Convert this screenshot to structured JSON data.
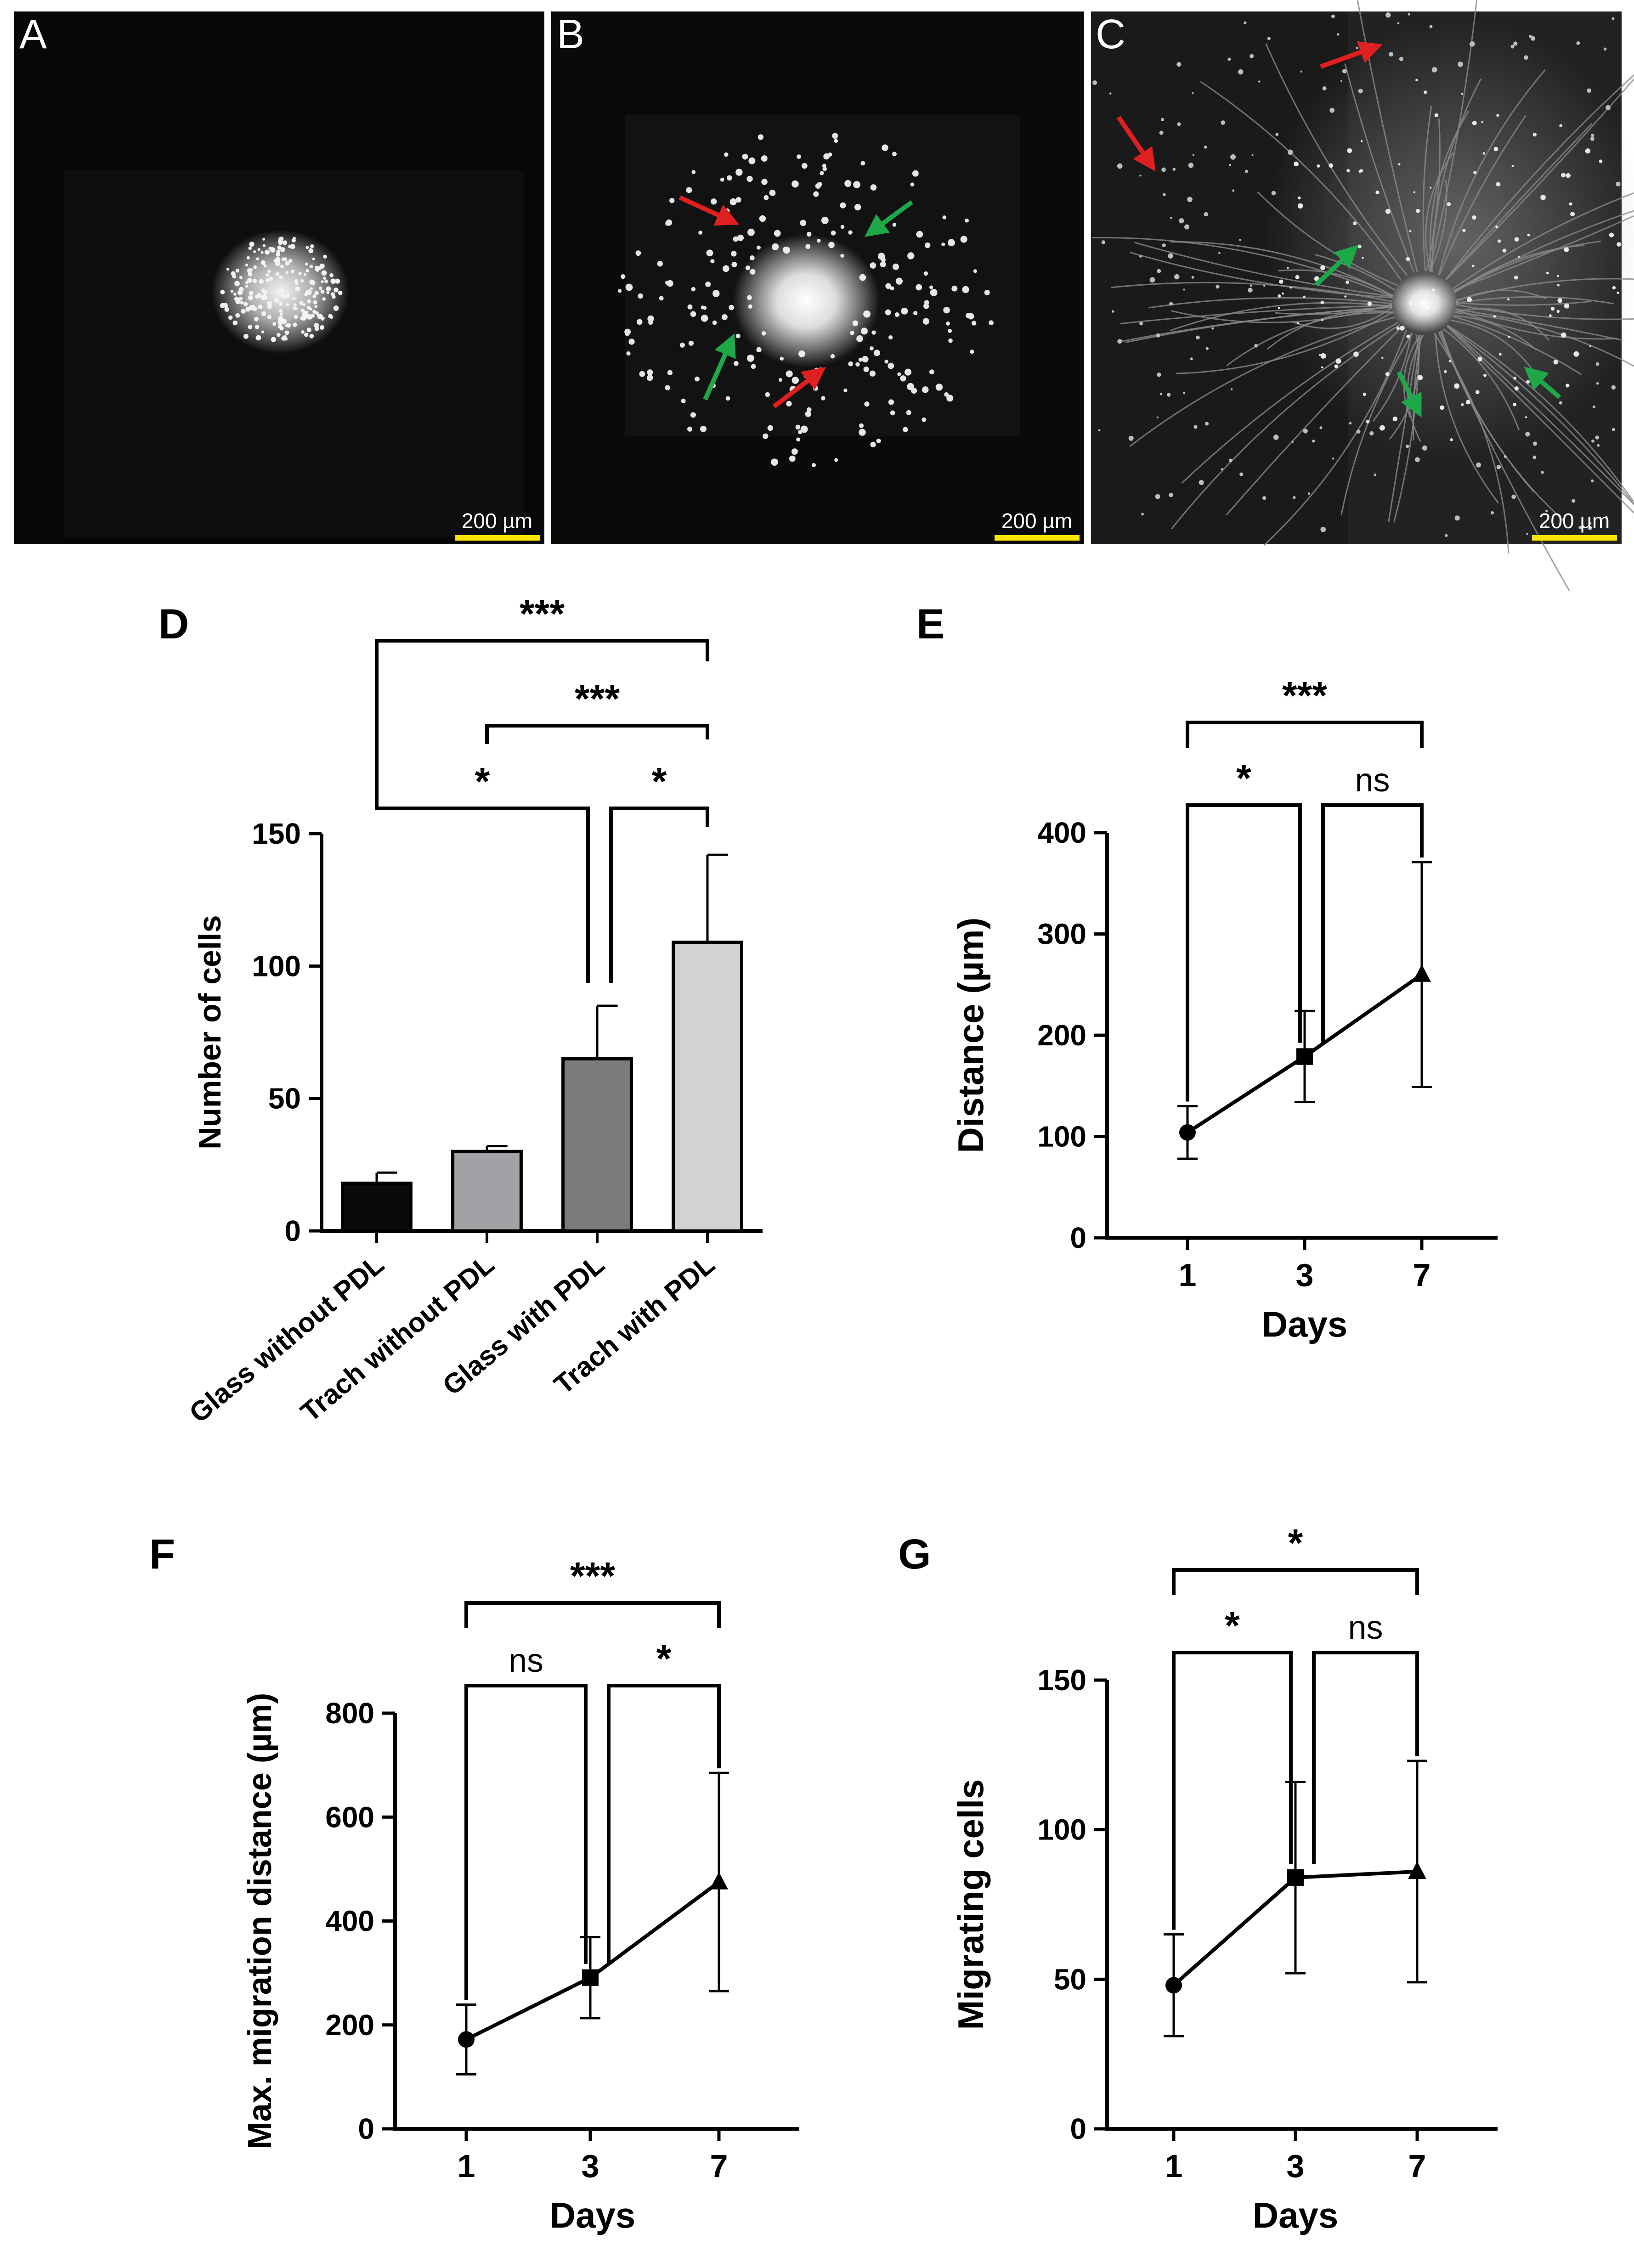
{
  "panels": {
    "A": {
      "label": "A",
      "scale_bar": "200 µm"
    },
    "B": {
      "label": "B",
      "scale_bar": "200 µm"
    },
    "C": {
      "label": "C",
      "scale_bar": "200 µm"
    }
  },
  "colors": {
    "red_arrow": "#e02020",
    "green_arrow": "#1fa84a",
    "scale_bar": "#ffe400"
  },
  "chart_data": [
    {
      "panel": "D",
      "type": "bar",
      "categories": [
        "Glass without PDL",
        "Trach without PDL",
        "Glass with PDL",
        "Trach with PDL"
      ],
      "values": [
        18,
        30,
        65,
        109
      ],
      "errors": [
        4,
        2,
        20,
        33
      ],
      "bar_colors": [
        "#0a0a0a",
        "#a2a2a6",
        "#7b7b7b",
        "#d2d2d2"
      ],
      "ylabel": "Number of cells",
      "xlabel": "",
      "ylim": [
        0,
        150
      ],
      "yticks": [
        0,
        50,
        100,
        150
      ],
      "significance": [
        {
          "from": 0,
          "to": 3,
          "label": "***"
        },
        {
          "from": 1,
          "to": 3,
          "label": "***"
        },
        {
          "from": 0,
          "to": 2,
          "label": "*"
        },
        {
          "from": 2,
          "to": 3,
          "label": "*"
        }
      ]
    },
    {
      "panel": "E",
      "type": "line",
      "x": [
        "1",
        "3",
        "7"
      ],
      "values": [
        104,
        179,
        260
      ],
      "errors": [
        26,
        45,
        111
      ],
      "markers": [
        "circle",
        "square",
        "triangle"
      ],
      "ylabel": "Distance (µm)",
      "xlabel": "Days",
      "ylim": [
        0,
        400
      ],
      "yticks": [
        0,
        100,
        200,
        300,
        400
      ],
      "significance": [
        {
          "from": 0,
          "to": 2,
          "label": "***"
        },
        {
          "from": 0,
          "to": 1,
          "label": "*"
        },
        {
          "from": 1,
          "to": 2,
          "label": "ns"
        }
      ]
    },
    {
      "panel": "F",
      "type": "line",
      "x": [
        "1",
        "3",
        "7"
      ],
      "values": [
        172,
        291,
        475
      ],
      "errors": [
        67,
        78,
        210
      ],
      "markers": [
        "circle",
        "square",
        "triangle"
      ],
      "ylabel": "Max. migration distance (µm)",
      "xlabel": "Days",
      "ylim": [
        0,
        800
      ],
      "yticks": [
        0,
        200,
        400,
        600,
        800
      ],
      "significance": [
        {
          "from": 0,
          "to": 2,
          "label": "***"
        },
        {
          "from": 0,
          "to": 1,
          "label": "ns"
        },
        {
          "from": 1,
          "to": 2,
          "label": "*"
        }
      ]
    },
    {
      "panel": "G",
      "type": "line",
      "x": [
        "1",
        "3",
        "7"
      ],
      "values": [
        48,
        84,
        86
      ],
      "errors": [
        17,
        32,
        37
      ],
      "markers": [
        "circle",
        "square",
        "triangle"
      ],
      "ylabel": "Migrating cells",
      "xlabel": "Days",
      "ylim": [
        0,
        150
      ],
      "yticks": [
        0,
        50,
        100,
        150
      ],
      "significance": [
        {
          "from": 0,
          "to": 2,
          "label": "*"
        },
        {
          "from": 0,
          "to": 1,
          "label": "*"
        },
        {
          "from": 1,
          "to": 2,
          "label": "ns"
        }
      ]
    }
  ]
}
